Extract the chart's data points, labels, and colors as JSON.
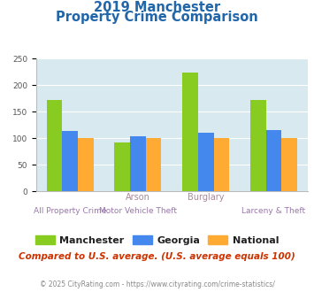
{
  "title_line1": "2019 Manchester",
  "title_line2": "Property Crime Comparison",
  "cat_labels_top": [
    "",
    "Arson",
    "Burglary",
    ""
  ],
  "cat_labels_bot": [
    "All Property Crime",
    "Motor Vehicle Theft",
    "",
    "Larceny & Theft"
  ],
  "manchester": [
    172,
    92,
    224,
    172
  ],
  "georgia": [
    113,
    103,
    110,
    115
  ],
  "national": [
    100,
    100,
    100,
    100
  ],
  "manchester_color": "#88cc22",
  "georgia_color": "#4488ee",
  "national_color": "#ffaa33",
  "ylim": [
    0,
    250
  ],
  "yticks": [
    0,
    50,
    100,
    150,
    200,
    250
  ],
  "bg_color": "#d8eaf0",
  "grid_color": "#ffffff",
  "subtitle_note": "Compared to U.S. average. (U.S. average equals 100)",
  "footer": "© 2025 CityRating.com - https://www.cityrating.com/crime-statistics/",
  "title_color": "#2266aa",
  "axis_label_color_top": "#aa8899",
  "axis_label_color_bot": "#9977aa",
  "legend_label_color": "#222222",
  "note_color": "#cc3300",
  "footer_color": "#888888",
  "footer_link_color": "#4488cc"
}
